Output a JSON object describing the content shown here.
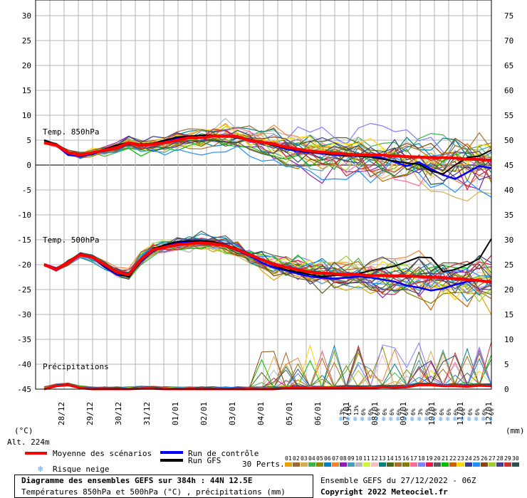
{
  "chart_data": {
    "type": "line",
    "left_axis": {
      "unit": "(°C)",
      "ticks": [
        "30",
        "25",
        "20",
        "15",
        "10",
        "5",
        "0",
        "-5",
        "-10",
        "-15",
        "-20",
        "-25",
        "-30",
        "-35",
        "-40",
        "-45"
      ],
      "ylim": [
        -45,
        30
      ]
    },
    "right_axis": {
      "unit": "(mm)",
      "ticks": [
        "75",
        "70",
        "65",
        "60",
        "55",
        "50",
        "45",
        "40",
        "35",
        "30",
        "25",
        "20",
        "15",
        "10",
        "5",
        "0"
      ]
    },
    "x_labels": [
      "28/12",
      "29/12",
      "30/12",
      "31/12",
      "01/01",
      "02/01",
      "03/01",
      "04/01",
      "05/01",
      "06/01",
      "07/01",
      "08/01",
      "09/01",
      "10/01",
      "11/01",
      "12/01"
    ],
    "altitude": "Alt. 224m",
    "panels": [
      {
        "label": "Temp. 850hPa"
      },
      {
        "label": "Temp. 500hPa"
      },
      {
        "label": "Précipitations"
      }
    ],
    "mean_850": [
      4.5,
      4,
      2.5,
      2,
      2.5,
      3,
      3.5,
      4.5,
      4,
      4.2,
      4.5,
      5,
      5.5,
      5.5,
      5.8,
      5.8,
      5.7,
      5,
      4.6,
      4.2,
      3.6,
      3.2,
      2.8,
      2.6,
      2.4,
      2.2,
      2.1,
      2.0,
      2.0,
      1.8,
      1.7,
      1.6,
      1.5,
      1.5,
      1.4,
      1.2,
      1.1,
      1.0
    ],
    "mean_500": [
      -20,
      -21,
      -19.5,
      -18,
      -18.5,
      -20,
      -21.5,
      -22,
      -19,
      -17,
      -16.5,
      -16,
      -15.8,
      -15.6,
      -15.8,
      -16.2,
      -17,
      -18,
      -19,
      -20,
      -20.5,
      -21,
      -21.5,
      -21.7,
      -21.8,
      -22,
      -22,
      -22.2,
      -22.2,
      -22.3,
      -22.3,
      -22.4,
      -22.5,
      -22.6,
      -22.8,
      -23,
      -23.2,
      -23.5
    ],
    "control_850": [
      5,
      4,
      2,
      1.8,
      2.2,
      3,
      3.8,
      4.3,
      4,
      4.3,
      4.8,
      5.4,
      5.5,
      5.6,
      5.8,
      5.8,
      5.6,
      5.2,
      4.6,
      4.0,
      3.2,
      2.8,
      2.5,
      2.3,
      2.0,
      1.9,
      1.8,
      1.8,
      1.4,
      0.6,
      -0.2,
      0.6,
      -0.8,
      -2.0,
      -2.8,
      -1.5,
      -0.2,
      -0.6
    ],
    "gfs_850": [
      5,
      4.2,
      2.3,
      2,
      2.4,
      3.2,
      4,
      4.6,
      4.2,
      4.4,
      5,
      5.6,
      5.8,
      6,
      6,
      5.8,
      5.4,
      5,
      4.5,
      4,
      3.4,
      3,
      2.6,
      2.4,
      2.2,
      2,
      1.8,
      1.6,
      1.2,
      0.8,
      0.4,
      0.2,
      -1.2,
      -1.8,
      0,
      1.5,
      1.8,
      3.0
    ],
    "control_500": [
      -20,
      -21.2,
      -19.5,
      -17.8,
      -18.6,
      -20.5,
      -22,
      -22.3,
      -19.5,
      -17.2,
      -16.4,
      -15.6,
      -15.4,
      -15.4,
      -15.6,
      -16.2,
      -17.2,
      -18.2,
      -19.6,
      -20.6,
      -21.2,
      -21.8,
      -22.4,
      -22.6,
      -22.8,
      -22.6,
      -22.4,
      -22.6,
      -23,
      -23.4,
      -24.2,
      -24.6,
      -25.2,
      -24.8,
      -24,
      -23.4,
      -23.2,
      -23.6
    ],
    "gfs_500": [
      -20,
      -20.8,
      -19.3,
      -17.8,
      -18.6,
      -20.3,
      -21.7,
      -22.5,
      -19.3,
      -16.8,
      -16,
      -15.4,
      -15.2,
      -15.2,
      -15.4,
      -16,
      -16.8,
      -17.8,
      -19,
      -20.2,
      -21,
      -21.5,
      -22,
      -22.4,
      -22.2,
      -22,
      -21.8,
      -21.2,
      -20.8,
      -20.3,
      -19.4,
      -18.5,
      -18.6,
      -21.4,
      -21,
      -20,
      -18.8,
      -14.8
    ],
    "precip_mean_mm": [
      0,
      0.6,
      0.8,
      0.2,
      0,
      0,
      0,
      0,
      0.1,
      0.1,
      0,
      0,
      0,
      0,
      0,
      0,
      0,
      0,
      0,
      0,
      0.2,
      0.3,
      0.2,
      0.2,
      0.2,
      0.3,
      0.3,
      0.2,
      0.4,
      0.3,
      0.4,
      0.8,
      0.8,
      0.6,
      0.6,
      0.5,
      0.7,
      0.6
    ],
    "snow_risk_row1": [
      "3%",
      "13%",
      "13%",
      "6%",
      "6%",
      "6%",
      "6%",
      "6%",
      "6%",
      "6%",
      "6%"
    ],
    "snow_risk_row2": [
      "3%",
      "6%",
      "6%",
      "6%",
      "6%",
      "6%",
      "6%",
      "6%",
      "6%",
      "6%",
      "6%"
    ]
  },
  "legend": {
    "mean": "Moyenne des scénarios",
    "control": "Run de contrôle",
    "gfs": "Run GFS",
    "snow": "Risque neige",
    "perts": "30 Perts.",
    "pert_numbers": [
      "01",
      "02",
      "03",
      "04",
      "05",
      "06",
      "07",
      "08",
      "09",
      "10",
      "11",
      "12",
      "13",
      "14",
      "15",
      "16",
      "17",
      "18",
      "19",
      "20",
      "21",
      "22",
      "23",
      "24",
      "25",
      "26",
      "27",
      "28",
      "29",
      "30"
    ],
    "pert_colors": [
      "#e8a000",
      "#9b6a2e",
      "#d4b04c",
      "#3cb44b",
      "#8b8b00",
      "#0082c8",
      "#f58231",
      "#911eb4",
      "#46a0b0",
      "#b8b8b8",
      "#d2f53c",
      "#fabebe",
      "#008080",
      "#4a6a1a",
      "#aa6e28",
      "#808000",
      "#ff6aa0",
      "#7f7fff",
      "#e6194b",
      "#5a5a5a",
      "#00c000",
      "#c86400",
      "#ffd700",
      "#3c3c96",
      "#1e90ff",
      "#8b4513",
      "#9acd32",
      "#483d8b",
      "#cc3333",
      "#2f4f4f"
    ]
  },
  "footer": {
    "title": "Diagramme des ensembles GEFS sur 384h : 44N 12.5E",
    "subtitle": "Températures 850hPa et 500hPa (°C) , précipitations (mm)",
    "ensemble": "Ensemble GEFS du 27/12/2022 - 06Z",
    "copyright": "Copyright 2022 Meteociel.fr"
  },
  "colors": {
    "mean": "#ff0000",
    "control": "#0000ff",
    "gfs": "#000000",
    "snow": "#5aa0e0",
    "grid": "#b4b4b4"
  }
}
